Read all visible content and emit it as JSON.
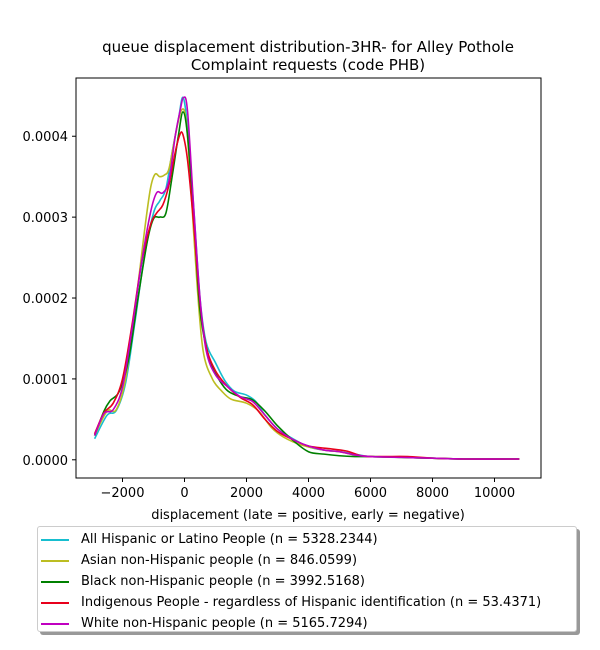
{
  "chart_data": {
    "type": "line",
    "title_line1": "queue displacement distribution-3HR-  for Alley Pothole",
    "title_line2": "Complaint  requests (code PHB)",
    "xlabel": "displacement (late = positive, early = negative)",
    "ylabel": "",
    "xlim": [
      -3500,
      11500
    ],
    "ylim": [
      -2.25e-05,
      0.000472
    ],
    "x_ticks": [
      -2000,
      0,
      2000,
      4000,
      6000,
      8000,
      10000
    ],
    "x_tick_labels": [
      "−2000",
      "0",
      "2000",
      "4000",
      "6000",
      "8000",
      "10000"
    ],
    "y_ticks": [
      0,
      0.0001,
      0.0002,
      0.0003,
      0.0004
    ],
    "y_tick_labels": [
      "0.0000",
      "0.0001",
      "0.0002",
      "0.0003",
      "0.0004"
    ],
    "grid": false,
    "legend_position": "below",
    "series": [
      {
        "name": "All Hispanic or Latino People (n = 5328.2344)",
        "color": "#17becf",
        "points": [
          [
            -2900,
            2.6e-05
          ],
          [
            -2500,
            5.5e-05
          ],
          [
            -2200,
            6.1e-05
          ],
          [
            -1900,
            9.5e-05
          ],
          [
            -1600,
            0.00017
          ],
          [
            -1300,
            0.00025
          ],
          [
            -1000,
            0.000305
          ],
          [
            -800,
            0.00032
          ],
          [
            -600,
            0.000335
          ],
          [
            -400,
            0.00038
          ],
          [
            -200,
            0.00042
          ],
          [
            -50,
            0.000448
          ],
          [
            100,
            0.00041
          ],
          [
            300,
            0.00031
          ],
          [
            500,
            0.0002
          ],
          [
            700,
            0.000145
          ],
          [
            1000,
            0.00012
          ],
          [
            1300,
            9.8e-05
          ],
          [
            1600,
            8.5e-05
          ],
          [
            2000,
            8e-05
          ],
          [
            2300,
            7.2e-05
          ],
          [
            2600,
            5.5e-05
          ],
          [
            3000,
            3.8e-05
          ],
          [
            3500,
            2.6e-05
          ],
          [
            4000,
            1.6e-05
          ],
          [
            4500,
            1.2e-05
          ],
          [
            5000,
            1e-05
          ],
          [
            5500,
            7e-06
          ],
          [
            6000,
            4e-06
          ],
          [
            7000,
            3e-06
          ],
          [
            8000,
            2e-06
          ],
          [
            9000,
            1e-06
          ],
          [
            10800,
            1e-06
          ]
        ]
      },
      {
        "name": "Asian non-Hispanic people (n = 846.0599)",
        "color": "#bcbd22",
        "points": [
          [
            -2900,
            3e-05
          ],
          [
            -2500,
            6e-05
          ],
          [
            -2200,
            6.2e-05
          ],
          [
            -1900,
            0.0001
          ],
          [
            -1600,
            0.000185
          ],
          [
            -1300,
            0.00028
          ],
          [
            -1100,
            0.000335
          ],
          [
            -950,
            0.000353
          ],
          [
            -800,
            0.00035
          ],
          [
            -650,
            0.000352
          ],
          [
            -500,
            0.00036
          ],
          [
            -300,
            0.0004
          ],
          [
            -100,
            0.000432
          ],
          [
            50,
            0.00042
          ],
          [
            200,
            0.00034
          ],
          [
            400,
            0.00022
          ],
          [
            600,
            0.000135
          ],
          [
            900,
            0.0001
          ],
          [
            1200,
            8.5e-05
          ],
          [
            1500,
            7.5e-05
          ],
          [
            2000,
            7e-05
          ],
          [
            2400,
            6e-05
          ],
          [
            2800,
            4e-05
          ],
          [
            3200,
            2.8e-05
          ],
          [
            3800,
            1.8e-05
          ],
          [
            4500,
            1.2e-05
          ],
          [
            5000,
            1e-05
          ],
          [
            5500,
            6e-06
          ],
          [
            6000,
            4e-06
          ],
          [
            7000,
            3e-06
          ],
          [
            8000,
            2e-06
          ],
          [
            9000,
            1e-06
          ],
          [
            10800,
            1e-06
          ]
        ]
      },
      {
        "name": "Black non-Hispanic people (n = 3992.5168)",
        "color": "#008000",
        "points": [
          [
            -2900,
            3e-05
          ],
          [
            -2600,
            6e-05
          ],
          [
            -2400,
            7.3e-05
          ],
          [
            -2100,
            8.5e-05
          ],
          [
            -1800,
            0.000125
          ],
          [
            -1500,
            0.0002
          ],
          [
            -1200,
            0.00027
          ],
          [
            -1000,
            0.000298
          ],
          [
            -800,
            0.0003
          ],
          [
            -600,
            0.000305
          ],
          [
            -400,
            0.00035
          ],
          [
            -200,
            0.0004
          ],
          [
            -50,
            0.00043
          ],
          [
            100,
            0.0004
          ],
          [
            300,
            0.0003
          ],
          [
            500,
            0.000185
          ],
          [
            800,
            0.000125
          ],
          [
            1100,
            0.0001
          ],
          [
            1400,
            8.5e-05
          ],
          [
            1800,
            7.8e-05
          ],
          [
            2200,
            7.4e-05
          ],
          [
            2600,
            6e-05
          ],
          [
            3000,
            4.2e-05
          ],
          [
            3500,
            2.4e-05
          ],
          [
            4000,
            1e-05
          ],
          [
            4500,
            7e-06
          ],
          [
            5000,
            5e-06
          ],
          [
            5500,
            4e-06
          ],
          [
            6000,
            4e-06
          ],
          [
            7000,
            3e-06
          ],
          [
            8000,
            2e-06
          ],
          [
            9000,
            1e-06
          ],
          [
            10800,
            1e-06
          ]
        ]
      },
      {
        "name": "Indigenous People - regardless of Hispanic identification (n = 53.4371)",
        "color": "#e8001c",
        "points": [
          [
            -2900,
            3.2e-05
          ],
          [
            -2600,
            5.8e-05
          ],
          [
            -2300,
            7e-05
          ],
          [
            -2000,
            0.0001
          ],
          [
            -1700,
            0.000165
          ],
          [
            -1400,
            0.00024
          ],
          [
            -1100,
            0.00029
          ],
          [
            -900,
            0.000305
          ],
          [
            -700,
            0.000315
          ],
          [
            -500,
            0.00034
          ],
          [
            -300,
            0.00038
          ],
          [
            -150,
            0.000402
          ],
          [
            -50,
            0.000402
          ],
          [
            100,
            0.00037
          ],
          [
            300,
            0.00029
          ],
          [
            500,
            0.000195
          ],
          [
            700,
            0.00014
          ],
          [
            1000,
            0.00011
          ],
          [
            1400,
            9e-05
          ],
          [
            1800,
            7.7e-05
          ],
          [
            2200,
            6.8e-05
          ],
          [
            2600,
            5e-05
          ],
          [
            3000,
            3.5e-05
          ],
          [
            3500,
            2.5e-05
          ],
          [
            4000,
            1.7e-05
          ],
          [
            4600,
            1.4e-05
          ],
          [
            5200,
            1.1e-05
          ],
          [
            5700,
            5e-06
          ],
          [
            6000,
            4e-06
          ],
          [
            6500,
            4e-06
          ],
          [
            7200,
            4e-06
          ],
          [
            8000,
            2e-06
          ],
          [
            9000,
            1e-06
          ],
          [
            10800,
            1e-06
          ]
        ]
      },
      {
        "name": "White non-Hispanic people (n = 5165.7294)",
        "color": "#c000c0",
        "points": [
          [
            -2900,
            3e-05
          ],
          [
            -2600,
            5.7e-05
          ],
          [
            -2300,
            6.2e-05
          ],
          [
            -2000,
            9e-05
          ],
          [
            -1700,
            0.00016
          ],
          [
            -1400,
            0.00024
          ],
          [
            -1100,
            0.000305
          ],
          [
            -900,
            0.00033
          ],
          [
            -700,
            0.00033
          ],
          [
            -500,
            0.000345
          ],
          [
            -300,
            0.0004
          ],
          [
            -150,
            0.00043
          ],
          [
            -30,
            0.000448
          ],
          [
            100,
            0.00043
          ],
          [
            300,
            0.00031
          ],
          [
            500,
            0.0002
          ],
          [
            700,
            0.000135
          ],
          [
            1000,
            0.000105
          ],
          [
            1400,
            9e-05
          ],
          [
            1800,
            7.8e-05
          ],
          [
            2200,
            7.2e-05
          ],
          [
            2600,
            5.5e-05
          ],
          [
            3000,
            3.8e-05
          ],
          [
            3500,
            2.5e-05
          ],
          [
            4000,
            1.7e-05
          ],
          [
            4500,
            1.2e-05
          ],
          [
            5000,
            1e-05
          ],
          [
            5500,
            6e-06
          ],
          [
            6000,
            4e-06
          ],
          [
            7000,
            3e-06
          ],
          [
            8000,
            2e-06
          ],
          [
            9000,
            1e-06
          ],
          [
            10800,
            1e-06
          ]
        ]
      }
    ]
  }
}
